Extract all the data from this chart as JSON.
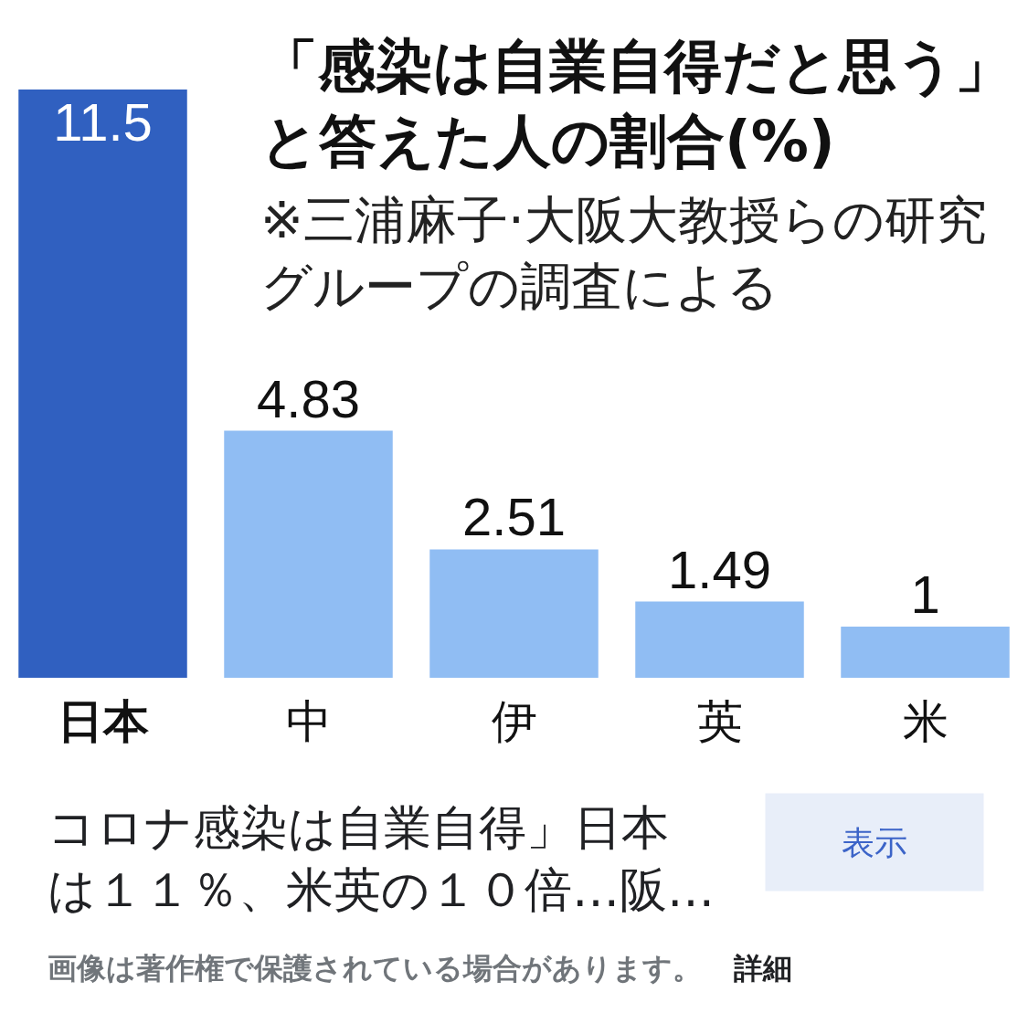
{
  "chart_data": {
    "type": "bar",
    "title": "「感染は自業自得だと思う」と答えた人の割合(%)",
    "subtitle": "※三浦麻子·大阪大教授らの研究グループの調査による",
    "categories": [
      "日本",
      "中",
      "伊",
      "英",
      "米"
    ],
    "values": [
      11.5,
      4.83,
      2.51,
      1.49,
      1
    ],
    "colors": [
      "#3060c0",
      "#90bdf3",
      "#90bdf3",
      "#90bdf3",
      "#90bdf3"
    ],
    "data_labels": true,
    "annotations": [
      "コロナ感染は自業自得」日本は１１％、米英の１０倍…阪…",
      "表示",
      "画像は著作権で保護されている場合があります。",
      "詳細"
    ]
  }
}
